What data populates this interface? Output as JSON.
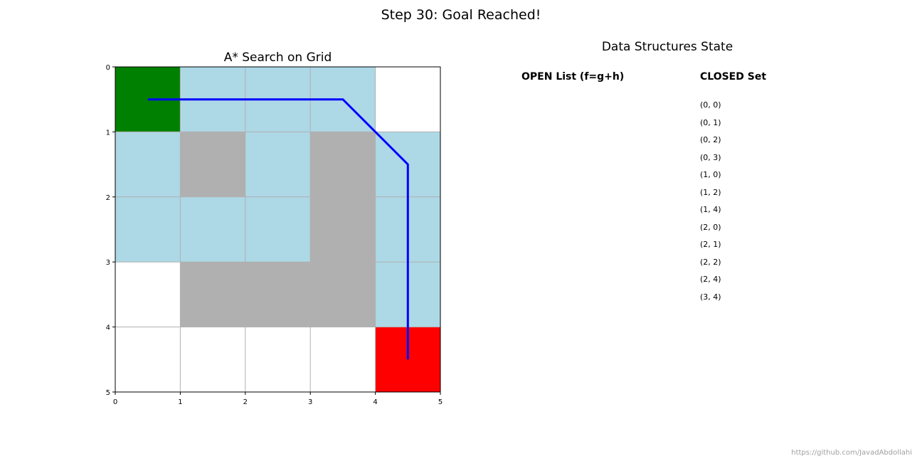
{
  "suptitle": "Step 30: Goal Reached!",
  "grid_panel": {
    "title": "A* Search on Grid",
    "x_ticks": [
      "0",
      "1",
      "2",
      "3",
      "4",
      "5"
    ],
    "y_ticks": [
      "0",
      "1",
      "2",
      "3",
      "4",
      "5"
    ],
    "rows": 5,
    "cols": 5,
    "colors": {
      "start": "#008000",
      "goal": "#ff0000",
      "visited": "#add8e6",
      "obstacle": "#b0b0b0",
      "empty": "#ffffff",
      "grid_line": "#b0b0b0",
      "path": "#0000ff"
    },
    "cells": [
      [
        "start",
        "visited",
        "visited",
        "visited",
        "empty"
      ],
      [
        "visited",
        "obstacle",
        "visited",
        "obstacle",
        "visited"
      ],
      [
        "visited",
        "visited",
        "visited",
        "obstacle",
        "visited"
      ],
      [
        "empty",
        "obstacle",
        "obstacle",
        "obstacle",
        "visited"
      ],
      [
        "empty",
        "empty",
        "empty",
        "empty",
        "goal"
      ]
    ],
    "path": [
      [
        0,
        0
      ],
      [
        0,
        1
      ],
      [
        0,
        2
      ],
      [
        0,
        3
      ],
      [
        1,
        4
      ],
      [
        2,
        4
      ],
      [
        3,
        4
      ],
      [
        4,
        4
      ]
    ]
  },
  "data_structures": {
    "title": "Data Structures State",
    "open_header": "OPEN List (f=g+h)",
    "open_items": [],
    "closed_header": "CLOSED Set",
    "closed_items": [
      "(0, 0)",
      "(0, 1)",
      "(0, 2)",
      "(0, 3)",
      "(1, 0)",
      "(1, 2)",
      "(1, 4)",
      "(2, 0)",
      "(2, 1)",
      "(2, 2)",
      "(2, 4)",
      "(3, 4)"
    ]
  },
  "credit": "https://github.com/JavadAbdollahi"
}
